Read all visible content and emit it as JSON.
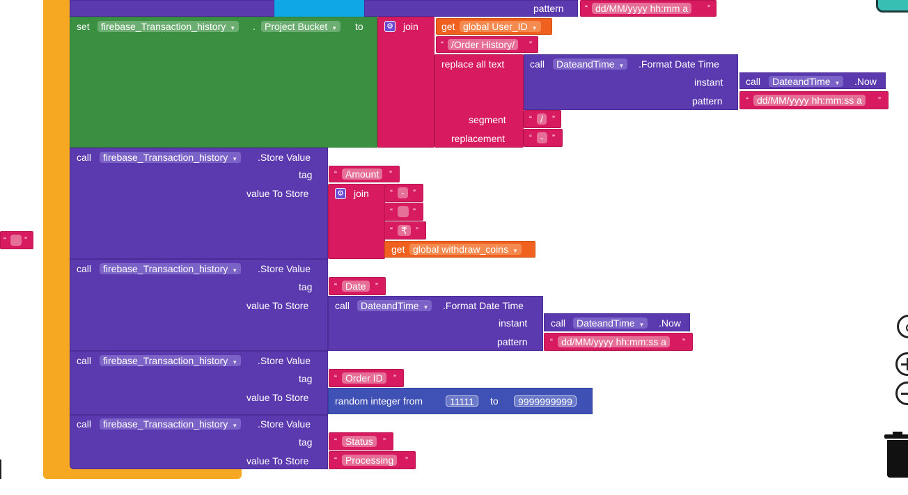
{
  "workspace": {
    "top_row": {
      "pattern_label": "pattern",
      "pattern_value": "dd/MM/yyyy hh:mm a"
    },
    "set_block": {
      "set_kw": "set",
      "component": "firebase_Transaction_history",
      "dot": ".",
      "property": "Project Bucket",
      "to_kw": "to",
      "join_kw": "join",
      "get_kw": "get",
      "global_var": "global User_ID",
      "order_history": "/Order History/",
      "replace_all": "replace all text",
      "call_kw": "call",
      "datetime": "DateandTime",
      "format_method": ".Format Date Time",
      "instant_label": "instant",
      "now_method": ".Now",
      "pattern_label": "pattern",
      "pattern_value": "dd/MM/yyyy hh:mm:ss a",
      "segment_label": "segment",
      "segment_value": "/",
      "replacement_label": "replacement",
      "replacement_value": "-"
    },
    "store_amount": {
      "call_kw": "call",
      "component": "firebase_Transaction_history",
      "method": ".Store Value",
      "tag_label": "tag",
      "tag_value": "Amount",
      "value_label": "value To Store",
      "join_kw": "join",
      "s1": "-",
      "s2": "",
      "s3": "₹",
      "get_kw": "get",
      "global_var": "global withdraw_coins"
    },
    "store_date": {
      "call_kw": "call",
      "component": "firebase_Transaction_history",
      "method": ".Store Value",
      "tag_label": "tag",
      "tag_value": "Date",
      "value_label": "value To Store",
      "datetime": "DateandTime",
      "format_method": ".Format Date Time",
      "instant_label": "instant",
      "now_method": ".Now",
      "pattern_label": "pattern",
      "pattern_value": "dd/MM/yyyy hh:mm:ss a"
    },
    "store_order": {
      "call_kw": "call",
      "component": "firebase_Transaction_history",
      "method": ".Store Value",
      "tag_label": "tag",
      "tag_value": "Order ID",
      "value_label": "value To Store",
      "random_label": "random integer from",
      "from_value": "11111",
      "to_kw": "to",
      "to_value": "9999999999"
    },
    "store_status": {
      "call_kw": "call",
      "component": "firebase_Transaction_history",
      "method": ".Store Value",
      "tag_label": "tag",
      "tag_value": "Status",
      "value_label": "value To Store",
      "status_value": "Processing"
    },
    "stray_string": ""
  },
  "colors": {
    "procedure_purple": "#5b3ab0",
    "set_green": "#3a8f41",
    "text_pink": "#d81b60",
    "variable_orange": "#f0611f",
    "math_blue": "#3f51b5",
    "event_yellow": "#f7a823"
  },
  "icons": [
    "gear-icon",
    "backpack-icon",
    "zoom-center-icon",
    "zoom-in-icon",
    "zoom-out-icon",
    "trash-icon"
  ]
}
